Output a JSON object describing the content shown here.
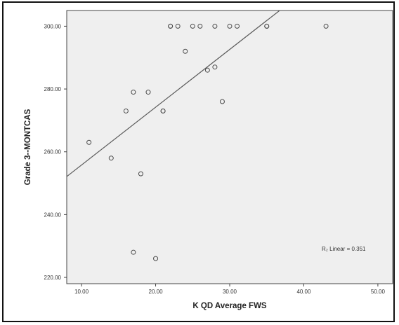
{
  "chart_data": {
    "type": "scatter",
    "title": "",
    "xlabel": "K QD Average FWS",
    "ylabel": "Grade 3--MONTCAS",
    "xlim": [
      8,
      52
    ],
    "ylim": [
      218,
      305
    ],
    "xticks": [
      "10.00",
      "20.00",
      "30.00",
      "40.00",
      "50.00"
    ],
    "yticks": [
      "220.00",
      "240.00",
      "260.00",
      "280.00",
      "300.00"
    ],
    "xtick_values": [
      10,
      20,
      30,
      40,
      50
    ],
    "ytick_values": [
      220,
      240,
      260,
      280,
      300
    ],
    "points": [
      {
        "x": 11,
        "y": 263
      },
      {
        "x": 14,
        "y": 258
      },
      {
        "x": 16,
        "y": 273
      },
      {
        "x": 17,
        "y": 279
      },
      {
        "x": 17,
        "y": 228
      },
      {
        "x": 18,
        "y": 253
      },
      {
        "x": 19,
        "y": 279
      },
      {
        "x": 20,
        "y": 226
      },
      {
        "x": 21,
        "y": 273
      },
      {
        "x": 21,
        "y": 273
      },
      {
        "x": 22,
        "y": 300
      },
      {
        "x": 22,
        "y": 300
      },
      {
        "x": 23,
        "y": 300
      },
      {
        "x": 24,
        "y": 292
      },
      {
        "x": 25,
        "y": 300
      },
      {
        "x": 26,
        "y": 300
      },
      {
        "x": 27,
        "y": 286
      },
      {
        "x": 28,
        "y": 287
      },
      {
        "x": 28,
        "y": 300
      },
      {
        "x": 29,
        "y": 276
      },
      {
        "x": 30,
        "y": 300
      },
      {
        "x": 31,
        "y": 300
      },
      {
        "x": 35,
        "y": 300
      },
      {
        "x": 35,
        "y": 300
      },
      {
        "x": 43,
        "y": 300
      }
    ],
    "fit_line": {
      "intercept": 237.4,
      "slope": 1.84
    },
    "annotation": "R₂ Linear = 0.351",
    "grid": false,
    "colors": {
      "plot_bg": "#efefef",
      "marker": "#4a4a4a",
      "line": "#5a5a5a"
    }
  }
}
